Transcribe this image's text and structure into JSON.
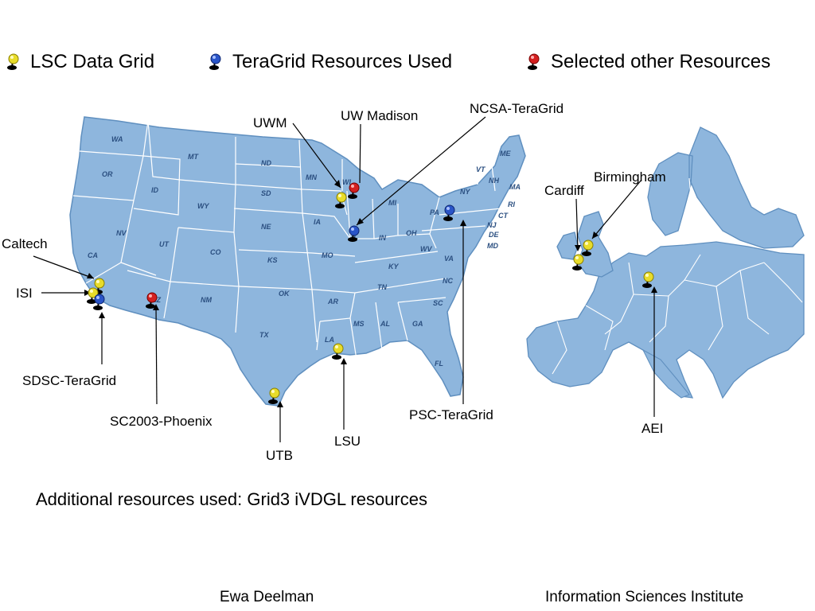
{
  "legend": [
    {
      "label": "LSC Data Grid",
      "color": "#e8dc2a"
    },
    {
      "label": "TeraGrid Resources Used",
      "color": "#2a55c8"
    },
    {
      "label": "Selected other Resources",
      "color": "#d42020"
    }
  ],
  "colors": {
    "land": "#8eb6dd",
    "land_dark": "#7aa6d0",
    "border": "#ffffff",
    "outline": "#5f8fbf"
  },
  "state_labels": [
    "WA",
    "OR",
    "CA",
    "NV",
    "ID",
    "MT",
    "WY",
    "UT",
    "CO",
    "AZ",
    "NM",
    "ND",
    "SD",
    "NE",
    "KS",
    "OK",
    "TX",
    "MN",
    "IA",
    "MO",
    "AR",
    "LA",
    "WI",
    "IL",
    "MI",
    "IN",
    "OH",
    "KY",
    "TN",
    "MS",
    "AL",
    "GA",
    "FL",
    "SC",
    "NC",
    "VA",
    "WV",
    "PA",
    "NY",
    "VT",
    "NH",
    "ME",
    "MA",
    "RI",
    "CT",
    "NJ",
    "DE",
    "MD"
  ],
  "sites": {
    "us": [
      "UWM",
      "UW Madison",
      "NCSA-TeraGrid",
      "Caltech",
      "ISI",
      "SDSC-TeraGrid",
      "SC2003-Phoenix",
      "UTB",
      "LSU",
      "PSC-TeraGrid"
    ],
    "europe": [
      "Birmingham",
      "Cardiff",
      "AEI"
    ]
  },
  "pins": [
    {
      "site": "UWM",
      "kind": "lsc"
    },
    {
      "site": "UW Madison",
      "kind": "other"
    },
    {
      "site": "NCSA-TeraGrid",
      "kind": "teragrid"
    },
    {
      "site": "Caltech",
      "kind": "lsc"
    },
    {
      "site": "ISI",
      "kind": "lsc"
    },
    {
      "site": "SDSC-TeraGrid",
      "kind": "teragrid"
    },
    {
      "site": "SC2003-Phoenix",
      "kind": "other"
    },
    {
      "site": "UTB",
      "kind": "lsc"
    },
    {
      "site": "LSU",
      "kind": "lsc"
    },
    {
      "site": "PSC-TeraGrid",
      "kind": "teragrid"
    },
    {
      "site": "Birmingham",
      "kind": "lsc"
    },
    {
      "site": "Cardiff",
      "kind": "lsc"
    },
    {
      "site": "AEI",
      "kind": "lsc"
    }
  ],
  "note": "Additional resources used:  Grid3 iVDGL resources",
  "footer": {
    "author": "Ewa Deelman",
    "institution": "Information Sciences Institute"
  }
}
